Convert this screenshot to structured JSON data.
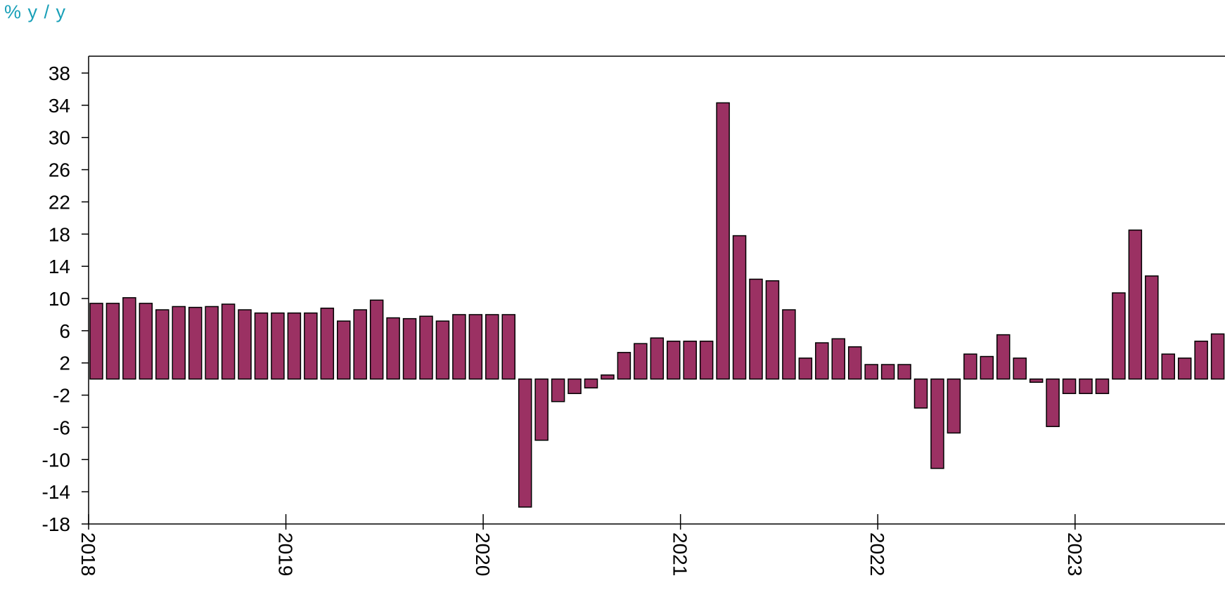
{
  "chart_data": {
    "type": "bar",
    "unit_label": "% y / y",
    "x_tick_labels": [
      "2018",
      "2019",
      "2020",
      "2021",
      "2022",
      "2023"
    ],
    "y_tick_labels": [
      "38",
      "34",
      "30",
      "26",
      "22",
      "18",
      "14",
      "10",
      "6",
      "2",
      "-2",
      "-6",
      "-10",
      "-14",
      "-18"
    ],
    "ylim": [
      -18,
      40
    ],
    "start_year": 2018,
    "bar_color": "#9b3163",
    "x": [
      "2018-01",
      "2018-02",
      "2018-03",
      "2018-04",
      "2018-05",
      "2018-06",
      "2018-07",
      "2018-08",
      "2018-09",
      "2018-10",
      "2018-11",
      "2018-12",
      "2019-01",
      "2019-02",
      "2019-03",
      "2019-04",
      "2019-05",
      "2019-06",
      "2019-07",
      "2019-08",
      "2019-09",
      "2019-10",
      "2019-11",
      "2019-12",
      "2020-01",
      "2020-02",
      "2020-03",
      "2020-04",
      "2020-05",
      "2020-06",
      "2020-07",
      "2020-08",
      "2020-09",
      "2020-10",
      "2020-11",
      "2020-12",
      "2021-01",
      "2021-02",
      "2021-03",
      "2021-04",
      "2021-05",
      "2021-06",
      "2021-07",
      "2021-08",
      "2021-09",
      "2021-10",
      "2021-11",
      "2021-12",
      "2022-01",
      "2022-02",
      "2022-03",
      "2022-04",
      "2022-05",
      "2022-06",
      "2022-07",
      "2022-08",
      "2022-09",
      "2022-10",
      "2022-11",
      "2022-12",
      "2023-01",
      "2023-02",
      "2023-03",
      "2023-04",
      "2023-05",
      "2023-06",
      "2023-07",
      "2023-08",
      "2023-09"
    ],
    "values": [
      9.4,
      9.4,
      10.1,
      9.4,
      8.6,
      9.0,
      8.9,
      9.0,
      9.3,
      8.6,
      8.2,
      8.2,
      8.2,
      8.2,
      8.8,
      7.2,
      8.6,
      9.8,
      7.6,
      7.5,
      7.8,
      7.2,
      8.0,
      8.0,
      8.0,
      8.0,
      -15.9,
      -7.6,
      -2.8,
      -1.8,
      -1.1,
      0.5,
      3.3,
      4.4,
      5.1,
      4.7,
      4.7,
      4.7,
      34.3,
      17.8,
      12.4,
      12.2,
      8.6,
      2.6,
      4.5,
      5.0,
      4.0,
      1.8,
      1.8,
      1.8,
      -3.6,
      -11.1,
      -6.7,
      3.1,
      2.8,
      5.5,
      2.6,
      -0.4,
      -5.9,
      -1.8,
      -1.8,
      -1.8,
      10.7,
      18.5,
      12.8,
      3.1,
      2.6,
      4.7,
      5.6
    ]
  }
}
